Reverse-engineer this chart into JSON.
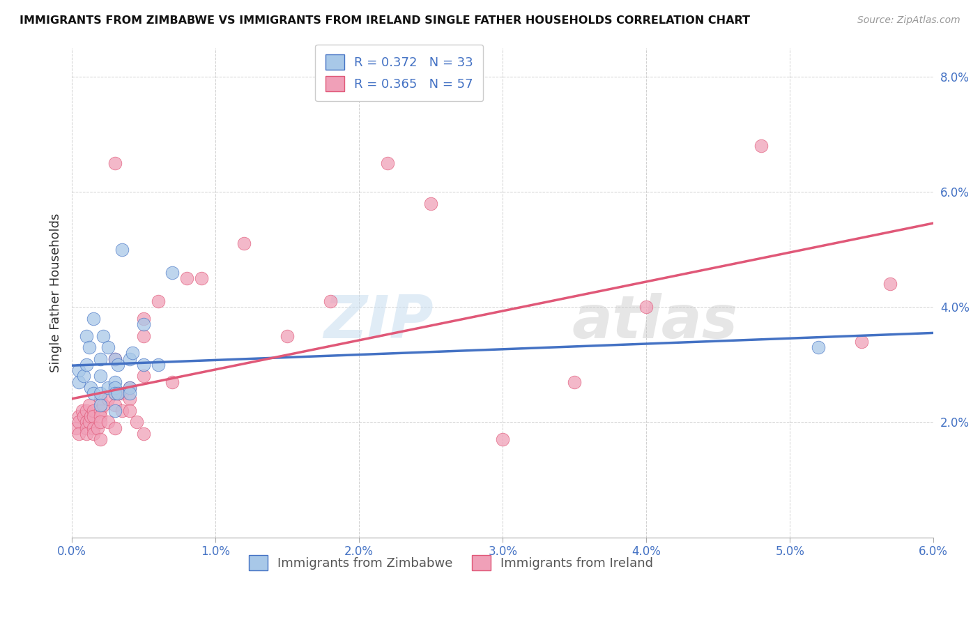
{
  "title": "IMMIGRANTS FROM ZIMBABWE VS IMMIGRANTS FROM IRELAND SINGLE FATHER HOUSEHOLDS CORRELATION CHART",
  "source": "Source: ZipAtlas.com",
  "ylabel": "Single Father Households",
  "xlim": [
    0.0,
    0.06
  ],
  "ylim": [
    0.0,
    0.085
  ],
  "yticks": [
    0.0,
    0.02,
    0.04,
    0.06,
    0.08
  ],
  "xticks": [
    0.0,
    0.01,
    0.02,
    0.03,
    0.04,
    0.05,
    0.06
  ],
  "xtick_labels": [
    "0.0%",
    "1.0%",
    "2.0%",
    "3.0%",
    "4.0%",
    "5.0%",
    "6.0%"
  ],
  "ytick_labels": [
    "",
    "2.0%",
    "4.0%",
    "6.0%",
    "8.0%"
  ],
  "zimbabwe_color": "#a8c8e8",
  "ireland_color": "#f0a0b8",
  "zimbabwe_line_color": "#4472c4",
  "ireland_line_color": "#e05878",
  "legend_R_zimbabwe": "R = 0.372",
  "legend_N_zimbabwe": "N = 33",
  "legend_R_ireland": "R = 0.365",
  "legend_N_ireland": "N = 57",
  "watermark_zip": "ZIP",
  "watermark_atlas": "atlas",
  "zimbabwe_x": [
    0.0005,
    0.0005,
    0.0008,
    0.001,
    0.001,
    0.0012,
    0.0013,
    0.0015,
    0.0015,
    0.002,
    0.002,
    0.002,
    0.002,
    0.0022,
    0.0025,
    0.0025,
    0.003,
    0.003,
    0.003,
    0.003,
    0.003,
    0.0032,
    0.0032,
    0.0035,
    0.004,
    0.004,
    0.004,
    0.0042,
    0.005,
    0.005,
    0.006,
    0.007,
    0.052
  ],
  "zimbabwe_y": [
    0.027,
    0.029,
    0.028,
    0.035,
    0.03,
    0.033,
    0.026,
    0.038,
    0.025,
    0.031,
    0.028,
    0.025,
    0.023,
    0.035,
    0.033,
    0.026,
    0.031,
    0.027,
    0.026,
    0.025,
    0.022,
    0.03,
    0.025,
    0.05,
    0.031,
    0.026,
    0.025,
    0.032,
    0.037,
    0.03,
    0.03,
    0.046,
    0.033
  ],
  "ireland_x": [
    0.0003,
    0.0005,
    0.0005,
    0.0005,
    0.0007,
    0.0008,
    0.001,
    0.001,
    0.001,
    0.001,
    0.0012,
    0.0012,
    0.0013,
    0.0015,
    0.0015,
    0.0015,
    0.0015,
    0.0018,
    0.002,
    0.002,
    0.002,
    0.002,
    0.002,
    0.0022,
    0.0025,
    0.0025,
    0.003,
    0.003,
    0.003,
    0.003,
    0.003,
    0.0032,
    0.0035,
    0.0035,
    0.004,
    0.004,
    0.004,
    0.0045,
    0.005,
    0.005,
    0.005,
    0.005,
    0.006,
    0.007,
    0.008,
    0.009,
    0.012,
    0.015,
    0.018,
    0.022,
    0.025,
    0.03,
    0.035,
    0.04,
    0.048,
    0.055,
    0.057
  ],
  "ireland_y": [
    0.019,
    0.021,
    0.02,
    0.018,
    0.022,
    0.021,
    0.022,
    0.02,
    0.019,
    0.018,
    0.023,
    0.02,
    0.021,
    0.022,
    0.021,
    0.019,
    0.018,
    0.019,
    0.024,
    0.022,
    0.021,
    0.02,
    0.017,
    0.023,
    0.024,
    0.02,
    0.065,
    0.031,
    0.025,
    0.023,
    0.019,
    0.025,
    0.025,
    0.022,
    0.026,
    0.024,
    0.022,
    0.02,
    0.038,
    0.035,
    0.028,
    0.018,
    0.041,
    0.027,
    0.045,
    0.045,
    0.051,
    0.035,
    0.041,
    0.065,
    0.058,
    0.017,
    0.027,
    0.04,
    0.068,
    0.034,
    0.044
  ]
}
